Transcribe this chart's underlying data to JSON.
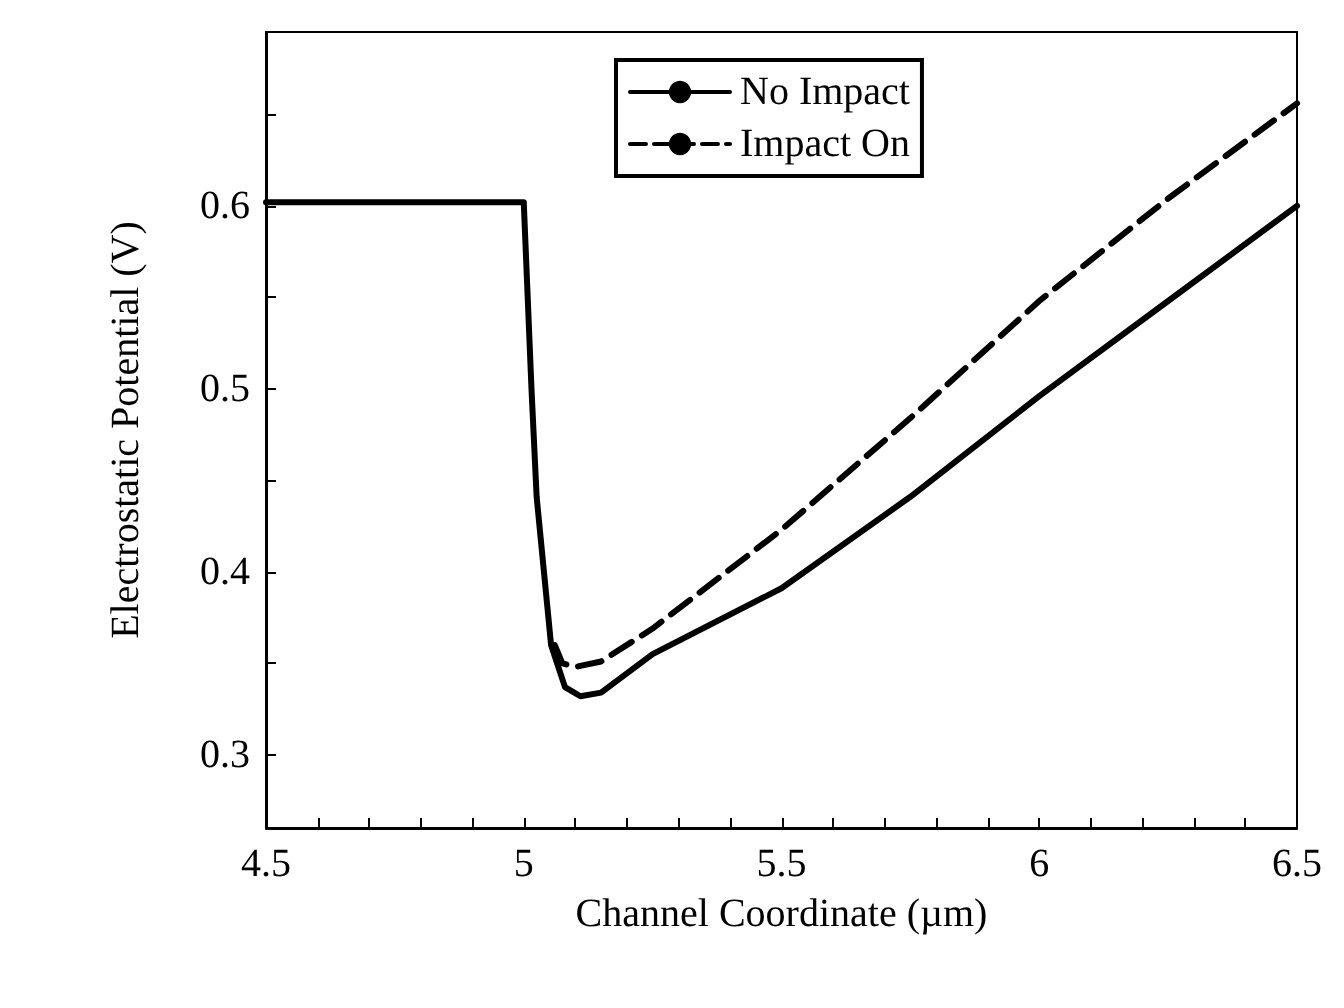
{
  "chart_data": {
    "type": "line",
    "xlabel": "Channel Coordinate (µm)",
    "ylabel": "Electrostatic Potential (V)",
    "xlim": [
      4.5,
      6.5
    ],
    "xticks": [
      4.5,
      {
        "value": 4.6,
        "label": null
      },
      {
        "value": 4.7,
        "label": null
      },
      {
        "value": 4.8,
        "label": null
      },
      {
        "value": 4.9,
        "label": null
      },
      5,
      {
        "value": 5.1,
        "label": null
      },
      {
        "value": 5.2,
        "label": null
      },
      {
        "value": 5.3,
        "label": null
      },
      {
        "value": 5.4,
        "label": null
      },
      5.5,
      {
        "value": 5.6,
        "label": null
      },
      {
        "value": 5.7,
        "label": null
      },
      {
        "value": 5.8,
        "label": null
      },
      {
        "value": 5.9,
        "label": null
      },
      6,
      {
        "value": 6.1,
        "label": null
      },
      {
        "value": 6.2,
        "label": null
      },
      {
        "value": 6.3,
        "label": null
      },
      {
        "value": 6.4,
        "label": null
      },
      6.5
    ],
    "ylim": [
      0.26,
      0.695
    ],
    "yticks": [
      0.3,
      {
        "value": 0.35,
        "label": null
      },
      0.4,
      {
        "value": 0.45,
        "label": null
      },
      0.5,
      {
        "value": 0.55,
        "label": null
      },
      0.6,
      {
        "value": 0.65,
        "label": null
      }
    ],
    "grid": false,
    "legend": "top",
    "series": [
      {
        "name": "No Impact",
        "color": "#000000",
        "line_style": "solid",
        "x": [
          4.5,
          5.0,
          5.015,
          5.025,
          5.053,
          5.08,
          5.11,
          5.15,
          5.25,
          5.5,
          5.75,
          6.0,
          6.25,
          6.5
        ],
        "values": [
          0.602,
          0.602,
          0.5,
          0.441,
          0.36,
          0.337,
          0.332,
          0.334,
          0.355,
          0.391,
          0.441,
          0.496,
          0.548,
          0.6
        ]
      },
      {
        "name": "Impact On",
        "color": "#000000",
        "line_style": "dashed",
        "x": [
          5.06,
          5.075,
          5.1,
          5.15,
          5.25,
          5.5,
          5.75,
          6.0,
          6.25,
          6.5
        ],
        "values": [
          0.36,
          0.35,
          0.348,
          0.351,
          0.369,
          0.423,
          0.484,
          0.548,
          0.604,
          0.656
        ]
      }
    ]
  }
}
